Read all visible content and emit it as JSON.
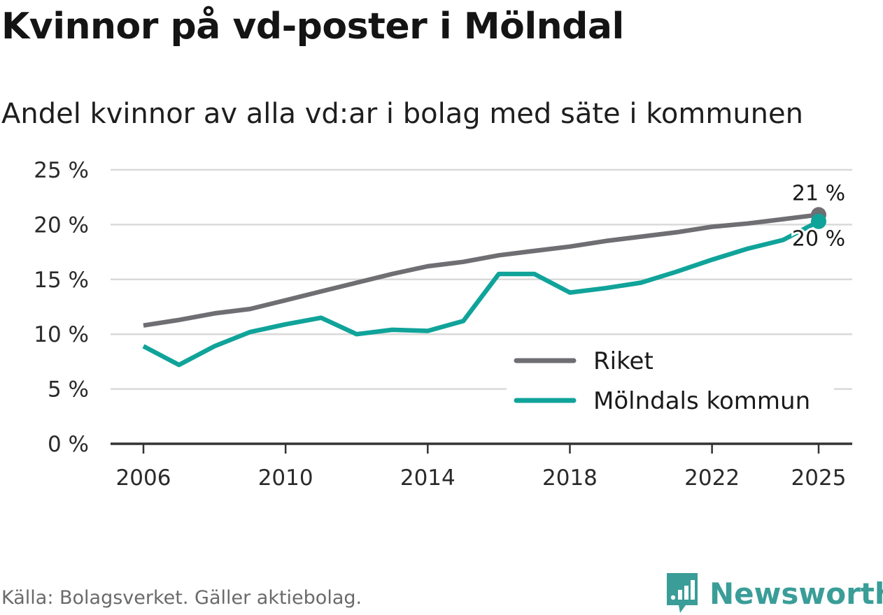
{
  "title": "Kvinnor på vd-poster i Mölndal",
  "subtitle": "Andel kvinnor av alla vd:ar i bolag med säte i kommunen",
  "source": "Källa: Bolagsverket. Gäller aktiebolag.",
  "brand": {
    "name": "Newsworthy",
    "icon": "newsworthy-logo-icon"
  },
  "colors": {
    "riket": "#6e6e73",
    "molndal": "#10a39a",
    "grid": "#d9d9d9",
    "axis": "#333333",
    "brand": "#3a9d98"
  },
  "chart_data": {
    "type": "line",
    "title": "Kvinnor på vd-poster i Mölndal",
    "subtitle": "Andel kvinnor av alla vd:ar i bolag med säte i kommunen",
    "xlabel": "",
    "ylabel": "",
    "x": [
      2006,
      2007,
      2008,
      2009,
      2010,
      2011,
      2012,
      2013,
      2014,
      2015,
      2016,
      2017,
      2018,
      2019,
      2020,
      2021,
      2022,
      2023,
      2024,
      2025
    ],
    "x_ticks": [
      2006,
      2010,
      2014,
      2018,
      2022,
      2025
    ],
    "x_tick_labels": [
      "2006",
      "2010",
      "2014",
      "2018",
      "2022",
      "2025"
    ],
    "ylim": [
      0,
      25
    ],
    "y_ticks": [
      0,
      5,
      10,
      15,
      20,
      25
    ],
    "y_tick_labels": [
      "0 %",
      "5 %",
      "10 %",
      "15 %",
      "20 %",
      "25 %"
    ],
    "grid": true,
    "legend_position": "bottom-right",
    "series": [
      {
        "name": "Riket",
        "color": "#6e6e73",
        "values": [
          10.8,
          11.3,
          11.9,
          12.3,
          13.1,
          13.9,
          14.7,
          15.5,
          16.2,
          16.6,
          17.2,
          17.6,
          18.0,
          18.5,
          18.9,
          19.3,
          19.8,
          20.1,
          20.5,
          20.9
        ],
        "end_label": "21 %"
      },
      {
        "name": "Mölndals kommun",
        "color": "#10a39a",
        "values": [
          8.9,
          7.2,
          8.9,
          10.2,
          10.9,
          11.5,
          10.0,
          10.4,
          10.3,
          11.2,
          15.5,
          15.5,
          13.8,
          14.2,
          14.7,
          15.7,
          16.8,
          17.8,
          18.6,
          20.3
        ],
        "end_label": "20 %"
      }
    ]
  }
}
